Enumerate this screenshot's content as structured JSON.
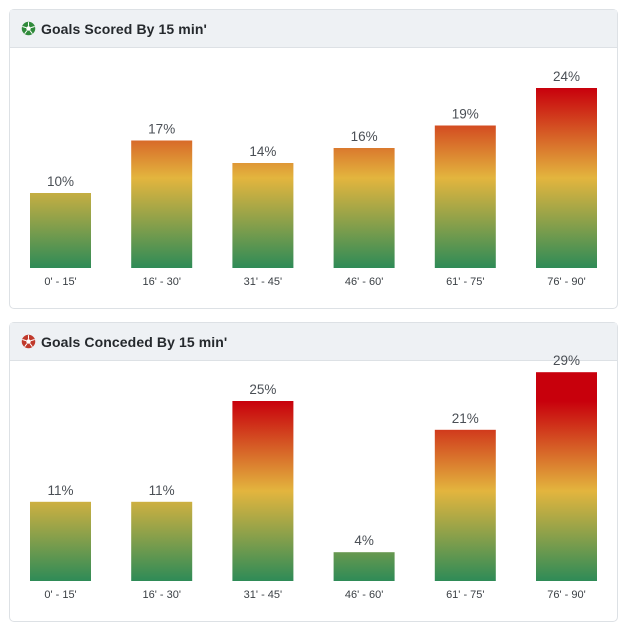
{
  "charts": [
    {
      "id": "scored",
      "title": "Goals Scored By 15 min'",
      "icon": "soccer-ball-green-icon",
      "icon_color": "#2f8a3a"
    },
    {
      "id": "conceded",
      "title": "Goals Conceded By 15 min'",
      "icon": "soccer-ball-red-icon",
      "icon_color": "#c0392b"
    }
  ],
  "chart_data": [
    {
      "type": "bar",
      "title": "Goals Scored By 15 min'",
      "categories": [
        "0' - 15'",
        "16' - 30'",
        "31' - 45'",
        "46' - 60'",
        "61' - 75'",
        "76' - 90'"
      ],
      "values": [
        10,
        17,
        14,
        16,
        19,
        24
      ],
      "value_labels": [
        "10%",
        "17%",
        "14%",
        "16%",
        "19%",
        "24%"
      ],
      "unit": "%",
      "ylim": [
        0,
        24
      ],
      "grid": false,
      "legend": "none",
      "gradient_colors": [
        "#2e8b57",
        "#e3b53e",
        "#c8000c"
      ]
    },
    {
      "type": "bar",
      "title": "Goals Conceded By 15 min'",
      "categories": [
        "0' - 15'",
        "16' - 30'",
        "31' - 45'",
        "46' - 60'",
        "61' - 75'",
        "76' - 90'"
      ],
      "values": [
        11,
        11,
        25,
        4,
        21,
        29
      ],
      "value_labels": [
        "11%",
        "11%",
        "25%",
        "4%",
        "21%",
        "29%"
      ],
      "unit": "%",
      "ylim": [
        0,
        25
      ],
      "grid": false,
      "legend": "none",
      "gradient_colors": [
        "#2e8b57",
        "#e3b53e",
        "#c8000c"
      ]
    }
  ]
}
